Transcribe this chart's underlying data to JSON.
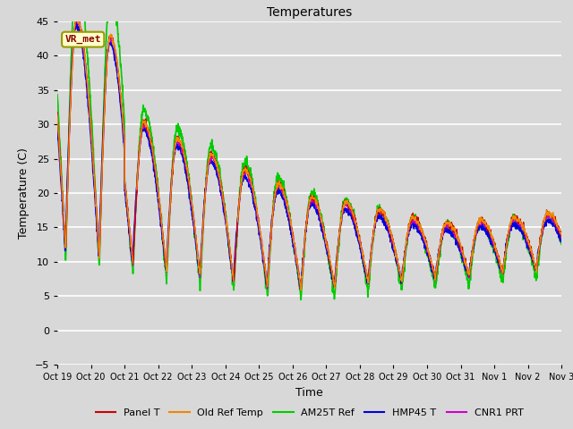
{
  "title": "Temperatures",
  "xlabel": "Time",
  "ylabel": "Temperature (C)",
  "ylim": [
    -5,
    45
  ],
  "background_color": "#d8d8d8",
  "plot_background": "#d8d8d8",
  "grid_color": "#ffffff",
  "annotation_text": "VR_met",
  "annotation_bg": "#ffffcc",
  "annotation_border": "#999900",
  "annotation_text_color": "#880000",
  "series": [
    {
      "label": "Panel T",
      "color": "#cc0000",
      "lw": 1.0
    },
    {
      "label": "Old Ref Temp",
      "color": "#ee8800",
      "lw": 1.0
    },
    {
      "label": "AM25T Ref",
      "color": "#00cc00",
      "lw": 1.2
    },
    {
      "label": "HMP45 T",
      "color": "#0000dd",
      "lw": 1.2
    },
    {
      "label": "CNR1 PRT",
      "color": "#cc00cc",
      "lw": 1.0
    }
  ],
  "tick_labels": [
    "Oct 19",
    "Oct 20",
    "Oct 21",
    "Oct 22",
    "Oct 23",
    "Oct 24",
    "Oct 25",
    "Oct 26",
    "Oct 27",
    "Oct 28",
    "Oct 29",
    "Oct 30",
    "Oct 31",
    "Nov 1",
    "Nov 2",
    "Nov 3"
  ],
  "yticks": [
    -5,
    0,
    5,
    10,
    15,
    20,
    25,
    30,
    35,
    40,
    45
  ]
}
